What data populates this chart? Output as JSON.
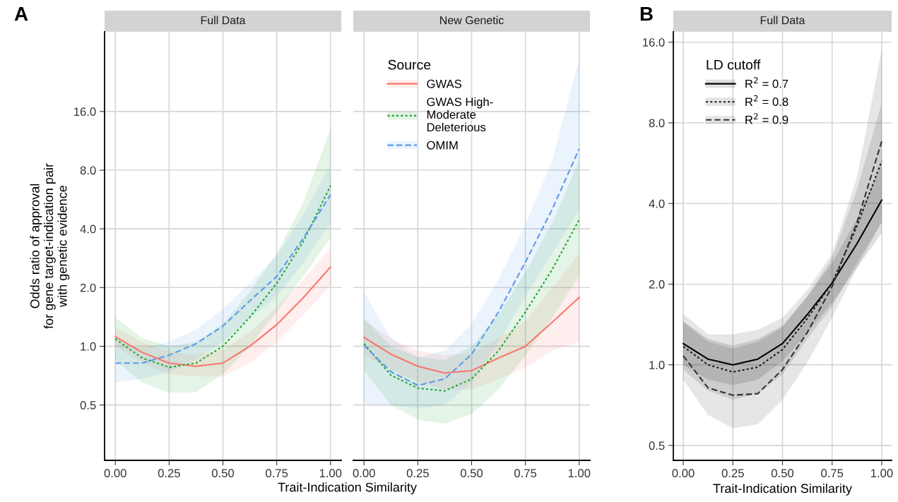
{
  "chart_data": [
    {
      "type": "line",
      "title": "Full Data",
      "annotations": [
        "A"
      ],
      "xlabel": "Trait-Indication Similarity",
      "ylabel": "Odds ratio of approval\nfor gene target-indication pair\nwith genetic evidence",
      "log": "y",
      "grid": true,
      "legend": false,
      "xlim": [
        -0.05,
        1.05
      ],
      "xticks": [
        {
          "value": 0,
          "label": "0.00"
        },
        {
          "value": 0.25,
          "label": "0.25"
        },
        {
          "value": 0.5,
          "label": "0.50"
        },
        {
          "value": 0.75,
          "label": "0.75"
        },
        {
          "value": 1,
          "label": "1.00"
        }
      ],
      "ylim": [
        0.26,
        41
      ],
      "yticks": [
        {
          "value": 0.5,
          "label": "0.5"
        },
        {
          "value": 1,
          "label": "1.0"
        },
        {
          "value": 2,
          "label": "2.0"
        },
        {
          "value": 4,
          "label": "4.0"
        },
        {
          "value": 8,
          "label": "8.0"
        },
        {
          "value": 16,
          "label": "16.0"
        }
      ],
      "x": [
        0,
        0.125,
        0.25,
        0.375,
        0.5,
        0.625,
        0.75,
        0.875,
        1
      ],
      "series": [
        {
          "color": "#f8766d",
          "line_style": "solid",
          "values": [
            1.12,
            0.93,
            0.82,
            0.79,
            0.82,
            1.0,
            1.29,
            1.78,
            2.55
          ],
          "lower": [
            1.0,
            0.82,
            0.72,
            0.7,
            0.7,
            0.82,
            1.05,
            1.45,
            2.05
          ],
          "upper": [
            1.25,
            1.05,
            0.94,
            0.9,
            0.96,
            1.18,
            1.58,
            2.2,
            3.2
          ]
        },
        {
          "color": "#1fa82e",
          "line_style": "dotted",
          "values": [
            1.09,
            0.87,
            0.78,
            0.82,
            1.0,
            1.41,
            2.1,
            3.47,
            6.66
          ],
          "lower": [
            0.85,
            0.65,
            0.58,
            0.58,
            0.72,
            1.0,
            1.5,
            2.3,
            3.6
          ],
          "upper": [
            1.4,
            1.1,
            1.0,
            1.05,
            1.3,
            1.9,
            3.0,
            5.5,
            13
          ]
        },
        {
          "color": "#5a9be8",
          "line_style": "dashed",
          "values": [
            0.82,
            0.82,
            0.9,
            1.03,
            1.27,
            1.71,
            2.28,
            3.6,
            5.98
          ],
          "lower": [
            0.65,
            0.68,
            0.74,
            0.86,
            1.05,
            1.4,
            1.8,
            2.7,
            4.3
          ],
          "upper": [
            1.05,
            0.98,
            1.05,
            1.22,
            1.55,
            2.1,
            2.9,
            4.8,
            8.5
          ]
        }
      ]
    },
    {
      "type": "line",
      "title": "New Genetic",
      "log": "y",
      "grid": true,
      "legend": "top left",
      "legend_title": "Source",
      "tick_labels": "x",
      "xlim": [
        -0.05,
        1.05
      ],
      "xticks": [
        {
          "value": 0,
          "label": "0.00"
        },
        {
          "value": 0.25,
          "label": "0.25"
        },
        {
          "value": 0.5,
          "label": "0.50"
        },
        {
          "value": 0.75,
          "label": "0.75"
        },
        {
          "value": 1,
          "label": "1.00"
        }
      ],
      "ylim": [
        0.26,
        41
      ],
      "yticks": [
        {
          "value": 0.5,
          "label": null
        },
        {
          "value": 1,
          "label": null
        },
        {
          "value": 2,
          "label": null
        },
        {
          "value": 4,
          "label": null
        },
        {
          "value": 8,
          "label": null
        },
        {
          "value": 16,
          "label": null
        }
      ],
      "x": [
        0,
        0.125,
        0.25,
        0.375,
        0.5,
        0.625,
        0.75,
        0.875,
        1
      ],
      "series": [
        {
          "name": "GWAS",
          "color": "#f8766d",
          "line_style": "solid",
          "values": [
            1.11,
            0.91,
            0.79,
            0.73,
            0.75,
            0.87,
            1.0,
            1.33,
            1.78
          ],
          "lower": [
            0.9,
            0.76,
            0.66,
            0.6,
            0.6,
            0.68,
            0.78,
            0.95,
            1.05
          ],
          "upper": [
            1.35,
            1.1,
            0.95,
            0.9,
            0.92,
            1.1,
            1.35,
            2.0,
            3.0
          ]
        },
        {
          "name": "GWAS High-\nModerate\nDeleterious",
          "color": "#1fa82e",
          "line_style": "dotted",
          "values": [
            1.03,
            0.71,
            0.61,
            0.59,
            0.68,
            0.95,
            1.5,
            2.48,
            4.46
          ],
          "lower": [
            0.75,
            0.5,
            0.42,
            0.4,
            0.45,
            0.6,
            0.9,
            1.4,
            2.3
          ],
          "upper": [
            1.4,
            1.0,
            0.88,
            0.85,
            1.0,
            1.45,
            2.4,
            4.3,
            9.0
          ]
        },
        {
          "name": "OMIM",
          "color": "#5a9be8",
          "line_style": "dashed",
          "values": [
            1.01,
            0.74,
            0.63,
            0.68,
            0.91,
            1.5,
            2.7,
            5.05,
            10.3
          ],
          "lower": [
            0.5,
            0.5,
            0.48,
            0.5,
            0.65,
            1.05,
            1.8,
            3.0,
            5.0
          ],
          "upper": [
            1.9,
            1.1,
            0.88,
            0.95,
            1.3,
            2.2,
            4.2,
            9.0,
            30
          ]
        }
      ]
    },
    {
      "type": "line",
      "title": "Full Data",
      "annotations": [
        "B"
      ],
      "xlabel": "Trait-Indication Similarity",
      "log": "y",
      "grid": true,
      "legend": "top left",
      "legend_title": "LD cutoff",
      "xlim": [
        -0.05,
        1.05
      ],
      "xticks": [
        {
          "value": 0,
          "label": "0.00"
        },
        {
          "value": 0.25,
          "label": "0.25"
        },
        {
          "value": 0.5,
          "label": "0.50"
        },
        {
          "value": 0.75,
          "label": "0.75"
        },
        {
          "value": 1,
          "label": "1.00"
        }
      ],
      "ylim": [
        0.44,
        17.5
      ],
      "yticks": [
        {
          "value": 0.5,
          "label": "0.5"
        },
        {
          "value": 1,
          "label": "1.0"
        },
        {
          "value": 2,
          "label": "2.0"
        },
        {
          "value": 4,
          "label": "4.0"
        },
        {
          "value": 8,
          "label": "8.0"
        },
        {
          "value": 16,
          "label": "16.0"
        }
      ],
      "x": [
        0,
        0.125,
        0.25,
        0.375,
        0.5,
        0.625,
        0.75,
        0.875,
        1
      ],
      "series": [
        {
          "name": "R$^{2}$ = 0.7",
          "color": "#000000",
          "line_style": "solid",
          "values": [
            1.2,
            1.05,
            1.0,
            1.05,
            1.2,
            1.54,
            2.02,
            2.83,
            4.12
          ],
          "lower": [
            1.0,
            0.88,
            0.84,
            0.88,
            1.03,
            1.32,
            1.7,
            2.3,
            3.1
          ],
          "upper": [
            1.45,
            1.25,
            1.18,
            1.25,
            1.4,
            1.8,
            2.4,
            3.5,
            5.6
          ]
        },
        {
          "name": "R$^{2}$ = 0.8",
          "color": "#1a1a1a",
          "line_style": "dotted",
          "values": [
            1.17,
            1.0,
            0.94,
            0.98,
            1.14,
            1.49,
            2.02,
            3.29,
            5.76
          ],
          "lower": [
            0.96,
            0.8,
            0.74,
            0.78,
            0.92,
            1.25,
            1.65,
            2.4,
            3.4
          ],
          "upper": [
            1.45,
            1.22,
            1.15,
            1.22,
            1.38,
            1.8,
            2.5,
            4.5,
            9.5
          ]
        },
        {
          "name": "R$^{2}$ = 0.9",
          "color": "#333333",
          "line_style": "dashed",
          "values": [
            1.08,
            0.82,
            0.77,
            0.78,
            0.96,
            1.32,
            1.96,
            3.39,
            6.83
          ],
          "lower": [
            0.88,
            0.65,
            0.58,
            0.6,
            0.74,
            1.02,
            1.5,
            2.3,
            3.4
          ],
          "upper": [
            1.55,
            1.3,
            1.3,
            1.35,
            1.5,
            1.9,
            2.6,
            5.0,
            15
          ]
        }
      ]
    }
  ]
}
